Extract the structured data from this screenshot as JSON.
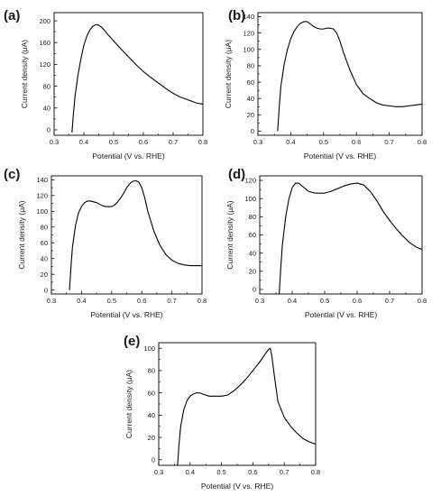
{
  "figure": {
    "line_color": "#000000",
    "axis_color": "#000000",
    "background": "#ffffff"
  },
  "chart_data": [
    {
      "panel": "(a)",
      "type": "line",
      "xlabel": "Potential (V vs. RHE)",
      "ylabel": "Current density (μA)",
      "xlim": [
        0.3,
        0.8
      ],
      "ylim": [
        -10,
        215
      ],
      "xticks": [
        0.3,
        0.4,
        0.5,
        0.6,
        0.7,
        0.8
      ],
      "yticks": [
        0,
        40,
        80,
        120,
        160,
        200
      ],
      "grid": false,
      "series": [
        {
          "x": [
            0.36,
            0.365,
            0.37,
            0.38,
            0.39,
            0.4,
            0.41,
            0.42,
            0.43,
            0.44,
            0.45,
            0.46,
            0.47,
            0.48,
            0.5,
            0.52,
            0.55,
            0.58,
            0.6,
            0.62,
            0.65,
            0.68,
            0.7,
            0.72,
            0.75,
            0.78,
            0.8
          ],
          "y": [
            -5,
            30,
            60,
            100,
            130,
            155,
            172,
            183,
            190,
            193,
            192,
            188,
            182,
            175,
            163,
            151,
            134,
            117,
            107,
            98,
            86,
            74,
            67,
            61,
            55,
            49,
            47
          ]
        }
      ]
    },
    {
      "panel": "(b)",
      "type": "line",
      "xlabel": "Potential (V vs. RHE)",
      "ylabel": "Current density (μA)",
      "xlim": [
        0.3,
        0.8
      ],
      "ylim": [
        -5,
        145
      ],
      "xticks": [
        0.3,
        0.4,
        0.5,
        0.6,
        0.7,
        0.8
      ],
      "yticks": [
        0,
        20,
        40,
        60,
        80,
        100,
        120,
        140
      ],
      "grid": false,
      "series": [
        {
          "x": [
            0.36,
            0.365,
            0.37,
            0.38,
            0.39,
            0.4,
            0.41,
            0.42,
            0.43,
            0.44,
            0.45,
            0.46,
            0.47,
            0.48,
            0.49,
            0.5,
            0.51,
            0.52,
            0.53,
            0.54,
            0.55,
            0.56,
            0.58,
            0.6,
            0.62,
            0.64,
            0.66,
            0.68,
            0.7,
            0.72,
            0.74,
            0.76,
            0.78,
            0.8
          ],
          "y": [
            0,
            30,
            55,
            82,
            100,
            113,
            122,
            128,
            132,
            134,
            134,
            131,
            128,
            126,
            125,
            125,
            126,
            126,
            125,
            120,
            110,
            97,
            75,
            57,
            46,
            40,
            35,
            32,
            31,
            30,
            30,
            31,
            32,
            33
          ]
        }
      ]
    },
    {
      "panel": "(c)",
      "type": "line",
      "xlabel": "Potential (V vs. RHE)",
      "ylabel": "Current density (μA)",
      "xlim": [
        0.3,
        0.8
      ],
      "ylim": [
        -5,
        145
      ],
      "xticks": [
        0.3,
        0.4,
        0.5,
        0.6,
        0.7,
        0.8
      ],
      "yticks": [
        0,
        20,
        40,
        60,
        80,
        100,
        120,
        140
      ],
      "grid": false,
      "series": [
        {
          "x": [
            0.36,
            0.365,
            0.37,
            0.38,
            0.39,
            0.4,
            0.41,
            0.42,
            0.43,
            0.44,
            0.45,
            0.46,
            0.47,
            0.48,
            0.49,
            0.5,
            0.51,
            0.52,
            0.53,
            0.54,
            0.55,
            0.56,
            0.57,
            0.58,
            0.59,
            0.6,
            0.61,
            0.62,
            0.64,
            0.66,
            0.68,
            0.7,
            0.72,
            0.74,
            0.76,
            0.78,
            0.8
          ],
          "y": [
            0,
            30,
            55,
            82,
            98,
            106,
            111,
            113,
            113,
            112,
            111,
            109,
            107,
            106,
            106,
            106,
            108,
            112,
            117,
            123,
            130,
            135,
            138,
            139,
            137,
            130,
            117,
            100,
            75,
            57,
            45,
            38,
            34,
            32,
            31,
            31,
            31
          ]
        }
      ]
    },
    {
      "panel": "(d)",
      "type": "line",
      "xlabel": "Potential (V vs. RHE)",
      "ylabel": "Current density (μA)",
      "xlim": [
        0.3,
        0.8
      ],
      "ylim": [
        -5,
        125
      ],
      "xticks": [
        0.3,
        0.4,
        0.5,
        0.6,
        0.7,
        0.8
      ],
      "yticks": [
        0,
        20,
        40,
        60,
        80,
        100,
        120
      ],
      "grid": false,
      "series": [
        {
          "x": [
            0.36,
            0.365,
            0.37,
            0.38,
            0.39,
            0.4,
            0.41,
            0.42,
            0.43,
            0.44,
            0.45,
            0.46,
            0.47,
            0.48,
            0.5,
            0.52,
            0.54,
            0.56,
            0.58,
            0.6,
            0.62,
            0.64,
            0.66,
            0.68,
            0.7,
            0.72,
            0.74,
            0.76,
            0.78,
            0.8
          ],
          "y": [
            -5,
            25,
            50,
            80,
            100,
            112,
            117,
            117,
            114,
            111,
            108,
            107,
            106,
            106,
            106,
            108,
            111,
            114,
            116,
            117,
            115,
            108,
            98,
            86,
            76,
            67,
            59,
            52,
            47,
            44
          ]
        }
      ]
    },
    {
      "panel": "(e)",
      "type": "line",
      "xlabel": "Potential (V vs. RHE)",
      "ylabel": "Current density (μA)",
      "xlim": [
        0.3,
        0.8
      ],
      "ylim": [
        -5,
        105
      ],
      "xticks": [
        0.3,
        0.4,
        0.5,
        0.6,
        0.7,
        0.8
      ],
      "yticks": [
        0,
        20,
        40,
        60,
        80,
        100
      ],
      "grid": false,
      "series": [
        {
          "x": [
            0.36,
            0.365,
            0.37,
            0.38,
            0.39,
            0.4,
            0.41,
            0.42,
            0.43,
            0.44,
            0.45,
            0.46,
            0.48,
            0.5,
            0.52,
            0.54,
            0.56,
            0.58,
            0.6,
            0.62,
            0.64,
            0.65,
            0.655,
            0.66,
            0.67,
            0.68,
            0.7,
            0.72,
            0.74,
            0.76,
            0.78,
            0.8
          ],
          "y": [
            -5,
            15,
            30,
            45,
            53,
            57,
            59,
            60,
            60,
            59,
            58,
            57,
            57,
            57,
            58,
            62,
            67,
            73,
            80,
            87,
            95,
            99,
            100,
            94,
            72,
            52,
            38,
            30,
            24,
            19,
            16,
            14
          ]
        }
      ]
    }
  ]
}
